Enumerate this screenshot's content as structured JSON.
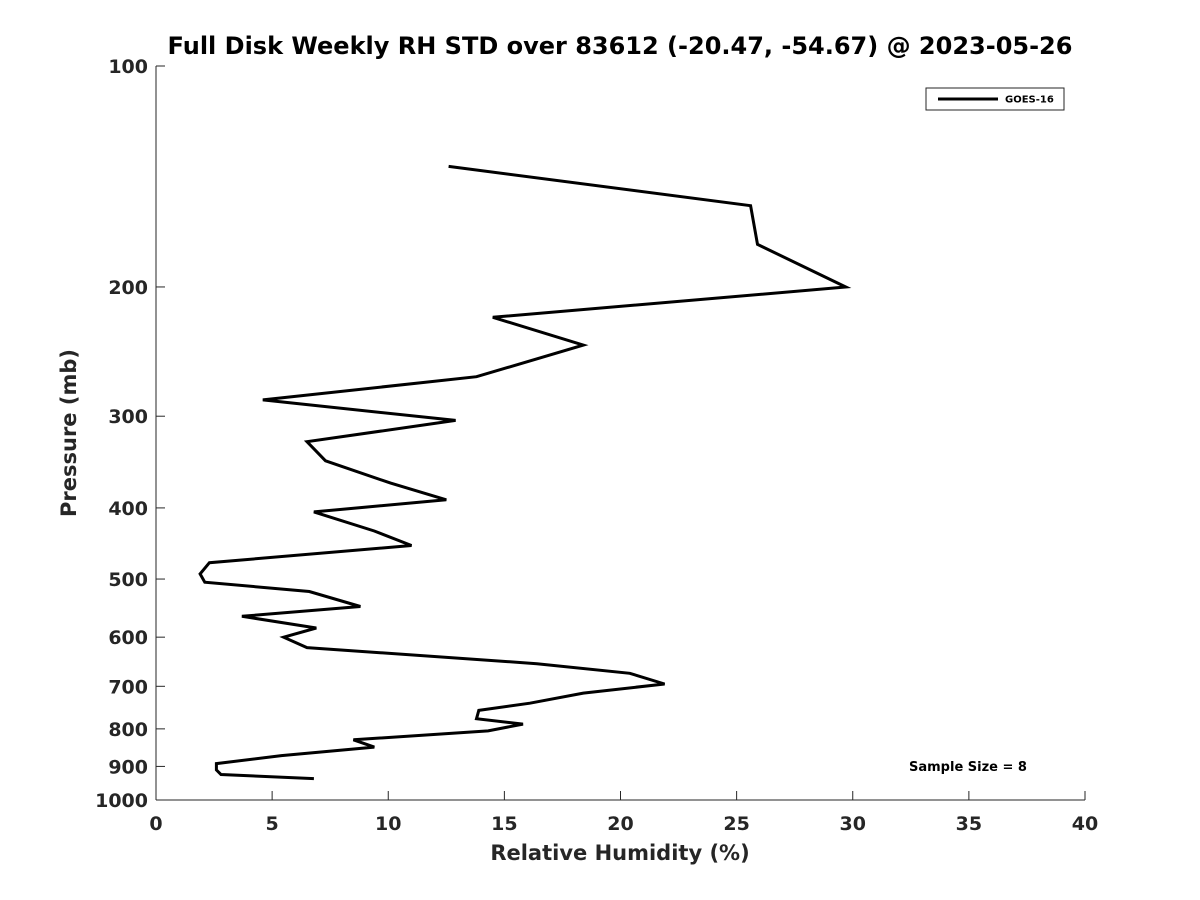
{
  "chart_data": {
    "type": "line",
    "title": "Full Disk Weekly RH STD over 83612 (-20.47, -54.67) @ 2023-05-26",
    "xlabel": "Relative Humidity (%)",
    "ylabel": "Pressure (mb)",
    "xlim": [
      0,
      40
    ],
    "ylim": [
      1000,
      100
    ],
    "yscale": "log",
    "grid": false,
    "legend_position": "top-right",
    "xticks": [
      0,
      5,
      10,
      15,
      20,
      25,
      30,
      35,
      40
    ],
    "yticks": [
      100,
      200,
      300,
      400,
      500,
      600,
      700,
      800,
      900,
      1000
    ],
    "series": [
      {
        "name": "GOES-16",
        "color": "#000000",
        "x": [
          12.6,
          25.6,
          25.9,
          29.7,
          14.5,
          18.4,
          13.8,
          4.6,
          12.9,
          6.5,
          7.3,
          10.1,
          12.5,
          6.8,
          9.4,
          11.0,
          2.3,
          1.9,
          2.1,
          6.6,
          8.8,
          3.7,
          6.9,
          5.5,
          6.5,
          16.4,
          20.4,
          21.9,
          18.4,
          16.1,
          13.9,
          13.8,
          15.8,
          14.3,
          8.5,
          9.4,
          5.4,
          2.6,
          2.6,
          2.8,
          6.8
        ],
        "y": [
          137,
          155,
          175,
          200,
          220,
          240,
          265,
          285,
          304,
          325,
          345,
          370,
          390,
          405,
          430,
          450,
          475,
          492,
          505,
          520,
          545,
          562,
          583,
          600,
          620,
          652,
          672,
          695,
          715,
          738,
          755,
          775,
          788,
          805,
          828,
          847,
          870,
          892,
          910,
          923,
          935
        ]
      }
    ],
    "annotation": "Sample Size = 8"
  }
}
